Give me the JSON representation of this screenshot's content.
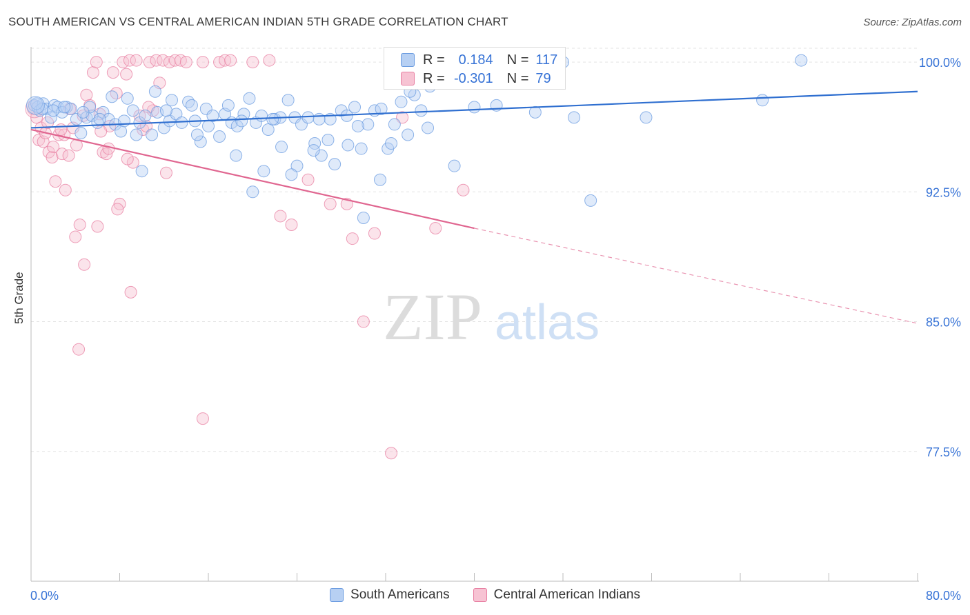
{
  "title": "SOUTH AMERICAN VS CENTRAL AMERICAN INDIAN 5TH GRADE CORRELATION CHART",
  "source": "Source: ZipAtlas.com",
  "watermark": {
    "zip": "ZIP",
    "atlas": "atlas"
  },
  "colors": {
    "blue": "#6a9be0",
    "blue_fill": "#b7d0f3",
    "pink": "#e87fa2",
    "pink_fill": "#f7c3d3",
    "blue_line": "#2f6fd0",
    "pink_line": "#e06690",
    "axis_text": "#3773d6"
  },
  "stats": {
    "blue": {
      "r_label": "R =",
      "r_value": "0.184",
      "n_label": "N =",
      "n_value": "117"
    },
    "pink": {
      "r_label": "R =",
      "r_value": "-0.301",
      "n_label": "N =",
      "n_value": "79"
    }
  },
  "legend": [
    {
      "label": "South Americans",
      "color": "blue"
    },
    {
      "label": "Central American Indians",
      "color": "pink"
    }
  ],
  "chart_data": {
    "type": "scatter",
    "title": "SOUTH AMERICAN VS CENTRAL AMERICAN INDIAN 5TH GRADE CORRELATION CHART",
    "xlabel": "",
    "ylabel": "5th Grade",
    "xlim": [
      0,
      80
    ],
    "ylim": [
      70,
      100.8
    ],
    "x_tick_labels": [
      "0.0%",
      "80.0%"
    ],
    "y_ticks": [
      100,
      92.5,
      85,
      77.5
    ],
    "y_tick_labels": [
      "100.0%",
      "92.5%",
      "85.0%",
      "77.5%"
    ],
    "grid": true,
    "legend_position": "bottom",
    "series": [
      {
        "name": "South Americans",
        "color": "blue",
        "trend": {
          "x": [
            0,
            80
          ],
          "y": [
            96.2,
            98.3
          ],
          "dashed_from": null
        },
        "points": [
          [
            0.3,
            97.5
          ],
          [
            0.6,
            97.4
          ],
          [
            0.8,
            97.2
          ],
          [
            1.1,
            97.6
          ],
          [
            1.4,
            97.3
          ],
          [
            1.8,
            96.8
          ],
          [
            2.1,
            97.5
          ],
          [
            2.4,
            97.4
          ],
          [
            2.8,
            97.1
          ],
          [
            3.2,
            97.4
          ],
          [
            3.6,
            97.3
          ],
          [
            4.1,
            96.7
          ],
          [
            4.5,
            95.9
          ],
          [
            5.0,
            96.8
          ],
          [
            5.5,
            96.9
          ],
          [
            6.0,
            96.5
          ],
          [
            6.5,
            97.1
          ],
          [
            7.0,
            96.7
          ],
          [
            7.6,
            96.4
          ],
          [
            8.1,
            96.0
          ],
          [
            8.7,
            97.9
          ],
          [
            9.2,
            97.2
          ],
          [
            9.8,
            96.5
          ],
          [
            10.3,
            96.9
          ],
          [
            10.9,
            95.8
          ],
          [
            11.4,
            97.1
          ],
          [
            12.0,
            96.2
          ],
          [
            12.5,
            96.6
          ],
          [
            13.1,
            97.0
          ],
          [
            13.6,
            96.5
          ],
          [
            14.2,
            97.7
          ],
          [
            14.8,
            96.6
          ],
          [
            15.3,
            95.4
          ],
          [
            15.8,
            97.3
          ],
          [
            16.4,
            96.9
          ],
          [
            17.0,
            95.7
          ],
          [
            17.5,
            97.0
          ],
          [
            18.1,
            96.5
          ],
          [
            18.6,
            96.3
          ],
          [
            19.2,
            97.0
          ],
          [
            19.7,
            97.9
          ],
          [
            20.3,
            96.5
          ],
          [
            20.8,
            96.9
          ],
          [
            21.4,
            96.1
          ],
          [
            22.0,
            96.7
          ],
          [
            22.6,
            95.1
          ],
          [
            23.2,
            97.8
          ],
          [
            23.8,
            96.8
          ],
          [
            24.4,
            96.4
          ],
          [
            25.0,
            96.8
          ],
          [
            25.6,
            95.3
          ],
          [
            26.2,
            94.6
          ],
          [
            26.8,
            95.5
          ],
          [
            27.4,
            94.1
          ],
          [
            28.0,
            97.2
          ],
          [
            28.6,
            95.2
          ],
          [
            29.2,
            97.4
          ],
          [
            29.8,
            95.0
          ],
          [
            30.4,
            96.4
          ],
          [
            31.0,
            97.2
          ],
          [
            31.6,
            97.3
          ],
          [
            32.2,
            95.0
          ],
          [
            32.8,
            96.4
          ],
          [
            33.4,
            97.7
          ],
          [
            34.0,
            95.8
          ],
          [
            34.6,
            98.1
          ],
          [
            35.2,
            97.2
          ],
          [
            35.8,
            96.2
          ],
          [
            36.4,
            99.2
          ],
          [
            37.0,
            99.4
          ],
          [
            37.6,
            99.9
          ],
          [
            38.2,
            94.0
          ],
          [
            38.8,
            99.0
          ],
          [
            39.4,
            100.1
          ],
          [
            40.0,
            97.4
          ],
          [
            40.6,
            100.0
          ],
          [
            41.2,
            99.6
          ],
          [
            42.0,
            97.5
          ],
          [
            45.5,
            97.1
          ],
          [
            48.0,
            100.0
          ],
          [
            49.0,
            96.8
          ],
          [
            55.5,
            96.8
          ],
          [
            66.0,
            97.8
          ],
          [
            69.5,
            100.1
          ],
          [
            50.5,
            92.0
          ],
          [
            21.0,
            93.7
          ],
          [
            24.0,
            94.0
          ],
          [
            32.5,
            95.3
          ],
          [
            30.0,
            91.0
          ],
          [
            25.5,
            94.9
          ],
          [
            18.5,
            94.6
          ],
          [
            16.0,
            96.3
          ],
          [
            15.0,
            95.8
          ],
          [
            12.7,
            97.8
          ],
          [
            11.2,
            98.3
          ],
          [
            9.5,
            95.8
          ],
          [
            7.3,
            98.0
          ],
          [
            6.2,
            96.7
          ],
          [
            5.3,
            97.4
          ],
          [
            4.7,
            97.1
          ],
          [
            3.0,
            97.4
          ],
          [
            2.0,
            97.2
          ],
          [
            1.0,
            97.3
          ],
          [
            0.5,
            97.6
          ],
          [
            10.0,
            93.7
          ],
          [
            14.5,
            97.5
          ],
          [
            22.5,
            96.8
          ],
          [
            27.0,
            96.7
          ],
          [
            29.5,
            96.3
          ],
          [
            31.5,
            93.2
          ],
          [
            17.8,
            97.5
          ],
          [
            20.0,
            92.5
          ],
          [
            23.5,
            93.5
          ],
          [
            26.0,
            96.7
          ],
          [
            28.5,
            96.9
          ],
          [
            34.2,
            98.3
          ],
          [
            36.0,
            98.6
          ],
          [
            38.5,
            98.8
          ],
          [
            12.2,
            97.2
          ],
          [
            8.4,
            96.6
          ],
          [
            19.0,
            96.6
          ],
          [
            21.8,
            96.7
          ]
        ]
      },
      {
        "name": "Central American Indians",
        "color": "pink",
        "trend": {
          "x": [
            0,
            40,
            80
          ],
          "y": [
            96.1,
            90.4,
            84.9
          ],
          "dashed_from": 40
        },
        "points": [
          [
            0.2,
            97.3
          ],
          [
            0.5,
            96.8
          ],
          [
            0.7,
            95.5
          ],
          [
            0.9,
            96.2
          ],
          [
            1.1,
            95.4
          ],
          [
            1.3,
            95.9
          ],
          [
            1.6,
            94.8
          ],
          [
            1.9,
            94.5
          ],
          [
            2.2,
            93.1
          ],
          [
            2.5,
            95.8
          ],
          [
            2.8,
            94.7
          ],
          [
            3.1,
            92.6
          ],
          [
            3.4,
            94.6
          ],
          [
            3.8,
            96.2
          ],
          [
            4.1,
            95.2
          ],
          [
            4.4,
            90.6
          ],
          [
            4.7,
            96.9
          ],
          [
            5.0,
            98.1
          ],
          [
            5.3,
            97.5
          ],
          [
            5.6,
            99.4
          ],
          [
            5.9,
            100.0
          ],
          [
            6.2,
            97.0
          ],
          [
            6.5,
            94.8
          ],
          [
            6.8,
            94.7
          ],
          [
            7.1,
            96.3
          ],
          [
            7.4,
            99.4
          ],
          [
            7.7,
            98.2
          ],
          [
            8.0,
            91.8
          ],
          [
            8.3,
            100.0
          ],
          [
            8.6,
            99.3
          ],
          [
            8.9,
            100.1
          ],
          [
            9.2,
            94.2
          ],
          [
            9.5,
            100.1
          ],
          [
            9.8,
            96.9
          ],
          [
            10.1,
            96.1
          ],
          [
            10.4,
            96.3
          ],
          [
            10.7,
            100.0
          ],
          [
            11.0,
            97.2
          ],
          [
            11.3,
            100.1
          ],
          [
            11.6,
            98.8
          ],
          [
            11.9,
            100.1
          ],
          [
            12.2,
            93.6
          ],
          [
            12.5,
            100.0
          ],
          [
            13.0,
            100.1
          ],
          [
            13.5,
            100.1
          ],
          [
            14.0,
            100.0
          ],
          [
            15.5,
            100.0
          ],
          [
            17.0,
            100.0
          ],
          [
            17.5,
            100.1
          ],
          [
            18.0,
            100.1
          ],
          [
            20.0,
            100.0
          ],
          [
            21.5,
            100.1
          ],
          [
            22.5,
            91.1
          ],
          [
            23.5,
            90.6
          ],
          [
            25.0,
            93.2
          ],
          [
            27.0,
            91.8
          ],
          [
            28.5,
            91.8
          ],
          [
            29.0,
            89.8
          ],
          [
            30.0,
            85.0
          ],
          [
            31.0,
            90.1
          ],
          [
            32.5,
            77.4
          ],
          [
            33.5,
            96.8
          ],
          [
            39.0,
            92.6
          ],
          [
            36.5,
            90.4
          ],
          [
            7.0,
            95.0
          ],
          [
            4.0,
            89.9
          ],
          [
            4.8,
            88.3
          ],
          [
            6.0,
            90.5
          ],
          [
            7.8,
            91.5
          ],
          [
            9.0,
            86.7
          ],
          [
            4.3,
            83.4
          ],
          [
            15.5,
            79.4
          ],
          [
            3.0,
            95.8
          ],
          [
            1.5,
            96.5
          ],
          [
            2.0,
            95.1
          ],
          [
            2.7,
            96.1
          ],
          [
            3.5,
            97.3
          ],
          [
            6.3,
            96.0
          ],
          [
            8.7,
            94.4
          ],
          [
            10.6,
            97.4
          ]
        ]
      }
    ]
  }
}
